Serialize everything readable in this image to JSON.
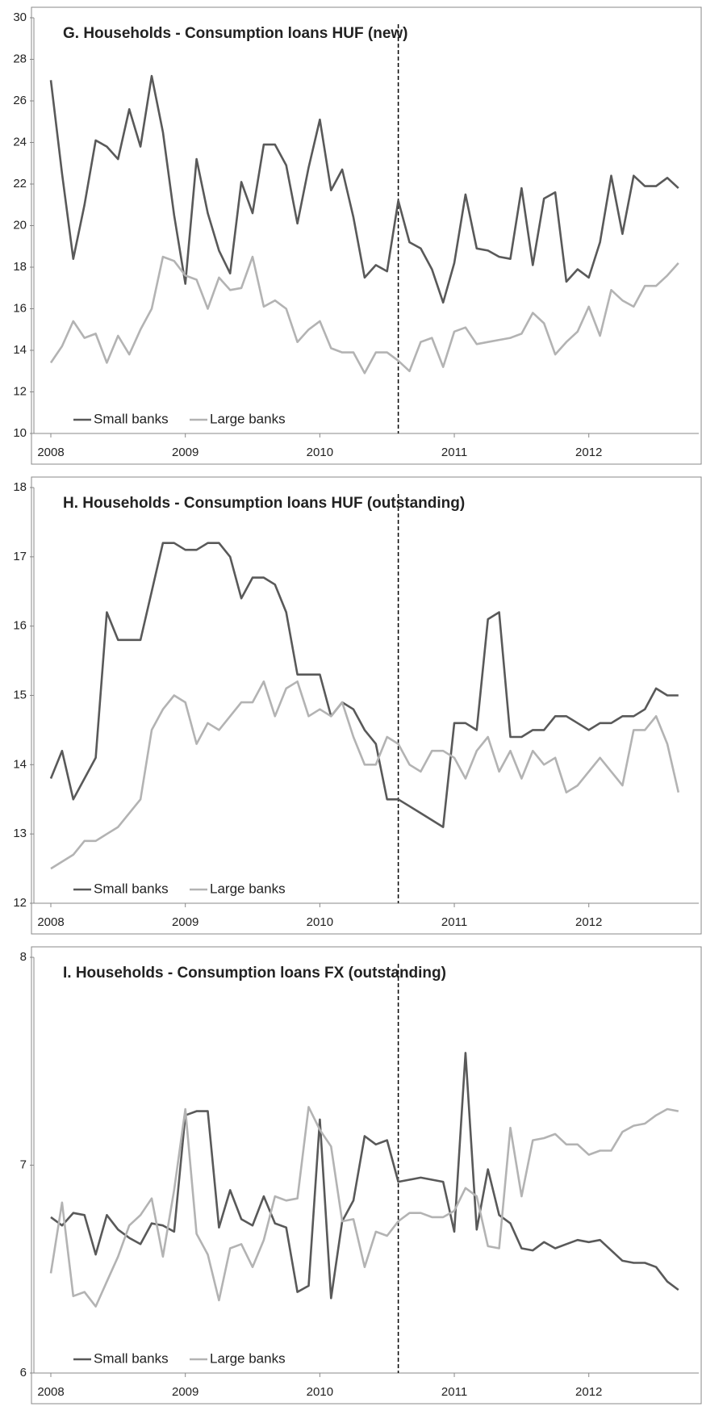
{
  "chart_data": [
    {
      "type": "line",
      "title": "G. Households - Consumption loans HUF (new)",
      "categories": [
        "2008",
        null,
        null,
        null,
        null,
        null,
        null,
        null,
        null,
        null,
        null,
        null,
        "2009",
        null,
        null,
        null,
        null,
        null,
        null,
        null,
        null,
        null,
        null,
        null,
        "2010",
        null,
        null,
        null,
        null,
        null,
        null,
        null,
        null,
        null,
        null,
        null,
        "2011",
        null,
        null,
        null,
        null,
        null,
        null,
        null,
        null,
        null,
        null,
        null,
        "2012",
        null,
        null,
        null,
        null,
        null,
        null,
        null,
        null
      ],
      "series": [
        {
          "name": "Small banks",
          "color": "#595959",
          "values": [
            27.0,
            22.5,
            18.4,
            21.0,
            24.1,
            23.8,
            23.2,
            25.6,
            23.8,
            27.2,
            24.5,
            20.5,
            17.2,
            23.2,
            20.6,
            18.8,
            17.7,
            22.1,
            20.6,
            23.9,
            23.9,
            22.9,
            20.1,
            22.8,
            25.1,
            21.7,
            22.7,
            20.4,
            17.5,
            18.1,
            17.8,
            21.2,
            19.2,
            18.9,
            17.9,
            16.3,
            18.2,
            21.5,
            18.9,
            18.8,
            18.5,
            18.4,
            21.8,
            18.1,
            21.3,
            21.6,
            17.3,
            17.9,
            17.5,
            19.2,
            22.4,
            19.6,
            22.4,
            21.9,
            21.9,
            22.3,
            21.8
          ]
        },
        {
          "name": "Large banks",
          "color": "#b3b3b3",
          "values": [
            13.4,
            14.2,
            15.4,
            14.6,
            14.8,
            13.4,
            14.7,
            13.8,
            15.0,
            16.0,
            18.5,
            18.3,
            17.6,
            17.4,
            16.0,
            17.5,
            16.9,
            17.0,
            18.5,
            16.1,
            16.4,
            16.0,
            14.4,
            15.0,
            15.4,
            14.1,
            13.9,
            13.9,
            12.9,
            13.9,
            13.9,
            13.5,
            13.0,
            14.4,
            14.6,
            13.2,
            14.9,
            15.1,
            14.3,
            14.4,
            14.5,
            14.6,
            14.8,
            15.8,
            15.3,
            13.8,
            14.4,
            14.9,
            16.1,
            14.7,
            16.9,
            16.4,
            16.1,
            17.1,
            17.1,
            17.6,
            18.2
          ]
        }
      ],
      "ylim": [
        10,
        30
      ],
      "yticks": [
        10,
        12,
        14,
        16,
        18,
        20,
        22,
        24,
        26,
        28,
        30
      ],
      "vline_index": 31,
      "legend": "bottom-left"
    },
    {
      "type": "line",
      "title": "H. Households - Consumption loans HUF (outstanding)",
      "categories": [
        "2008",
        null,
        null,
        null,
        null,
        null,
        null,
        null,
        null,
        null,
        null,
        null,
        "2009",
        null,
        null,
        null,
        null,
        null,
        null,
        null,
        null,
        null,
        null,
        null,
        "2010",
        null,
        null,
        null,
        null,
        null,
        null,
        null,
        null,
        null,
        null,
        null,
        "2011",
        null,
        null,
        null,
        null,
        null,
        null,
        null,
        null,
        null,
        null,
        null,
        "2012",
        null,
        null,
        null,
        null,
        null,
        null,
        null,
        null
      ],
      "series": [
        {
          "name": "Small banks",
          "color": "#595959",
          "values": [
            13.8,
            14.2,
            13.5,
            13.8,
            14.1,
            16.2,
            15.8,
            15.8,
            15.8,
            16.5,
            17.2,
            17.2,
            17.1,
            17.1,
            17.2,
            17.2,
            17.0,
            16.4,
            16.7,
            16.7,
            16.6,
            16.2,
            15.3,
            15.3,
            15.3,
            14.7,
            14.9,
            14.8,
            14.5,
            14.3,
            13.5,
            13.5,
            13.4,
            13.3,
            13.2,
            13.1,
            14.6,
            14.6,
            14.5,
            16.1,
            16.2,
            14.4,
            14.4,
            14.5,
            14.5,
            14.7,
            14.7,
            14.6,
            14.5,
            14.6,
            14.6,
            14.7,
            14.7,
            14.8,
            15.1,
            15.0,
            15.0
          ]
        },
        {
          "name": "Large banks",
          "color": "#b3b3b3",
          "values": [
            12.5,
            12.6,
            12.7,
            12.9,
            12.9,
            13.0,
            13.1,
            13.3,
            13.5,
            14.5,
            14.8,
            15.0,
            14.9,
            14.3,
            14.6,
            14.5,
            14.7,
            14.9,
            14.9,
            15.2,
            14.7,
            15.1,
            15.2,
            14.7,
            14.8,
            14.7,
            14.9,
            14.4,
            14.0,
            14.0,
            14.4,
            14.3,
            14.0,
            13.9,
            14.2,
            14.2,
            14.1,
            13.8,
            14.2,
            14.4,
            13.9,
            14.2,
            13.8,
            14.2,
            14.0,
            14.1,
            13.6,
            13.7,
            13.9,
            14.1,
            13.9,
            13.7,
            14.5,
            14.5,
            14.7,
            14.3,
            13.6
          ]
        }
      ],
      "ylim": [
        12,
        18
      ],
      "yticks": [
        12,
        13,
        14,
        15,
        16,
        17,
        18
      ],
      "vline_index": 31,
      "legend": "bottom-left"
    },
    {
      "type": "line",
      "title": "I. Households - Consumption loans FX (outstanding)",
      "categories": [
        "2008",
        null,
        null,
        null,
        null,
        null,
        null,
        null,
        null,
        null,
        null,
        null,
        "2009",
        null,
        null,
        null,
        null,
        null,
        null,
        null,
        null,
        null,
        null,
        null,
        "2010",
        null,
        null,
        null,
        null,
        null,
        null,
        null,
        null,
        null,
        null,
        null,
        "2011",
        null,
        null,
        null,
        null,
        null,
        null,
        null,
        null,
        null,
        null,
        null,
        "2012",
        null,
        null,
        null,
        null,
        null,
        null,
        null,
        null
      ],
      "series": [
        {
          "name": "Small banks",
          "color": "#595959",
          "values": [
            6.75,
            6.71,
            6.77,
            6.76,
            6.57,
            6.76,
            6.69,
            6.65,
            6.62,
            6.72,
            6.71,
            6.68,
            7.24,
            7.26,
            7.26,
            6.7,
            6.88,
            6.74,
            6.71,
            6.85,
            6.72,
            6.7,
            6.39,
            6.42,
            7.22,
            6.36,
            6.73,
            6.83,
            7.14,
            7.1,
            7.12,
            6.92,
            6.93,
            6.94,
            6.93,
            6.92,
            6.68,
            7.54,
            6.69,
            6.98,
            6.76,
            6.72,
            6.6,
            6.59,
            6.63,
            6.6,
            6.62,
            6.64,
            6.63,
            6.64,
            6.59,
            6.54,
            6.53,
            6.53,
            6.51,
            6.44,
            6.4
          ]
        },
        {
          "name": "Large banks",
          "color": "#b3b3b3",
          "values": [
            6.48,
            6.82,
            6.37,
            6.39,
            6.32,
            6.44,
            6.56,
            6.71,
            6.76,
            6.84,
            6.56,
            6.88,
            7.27,
            6.67,
            6.57,
            6.35,
            6.6,
            6.62,
            6.51,
            6.64,
            6.85,
            6.83,
            6.84,
            7.28,
            7.17,
            7.09,
            6.73,
            6.74,
            6.51,
            6.68,
            6.66,
            6.73,
            6.77,
            6.77,
            6.75,
            6.75,
            6.78,
            6.89,
            6.85,
            6.61,
            6.6,
            7.18,
            6.85,
            7.12,
            7.13,
            7.15,
            7.1,
            7.1,
            7.05,
            7.07,
            7.07,
            7.16,
            7.19,
            7.2,
            7.24,
            7.27,
            7.26
          ]
        }
      ],
      "ylim": [
        6,
        8
      ],
      "yticks": [
        6,
        7,
        8
      ],
      "vline_index": 31,
      "legend": "bottom-left"
    }
  ]
}
